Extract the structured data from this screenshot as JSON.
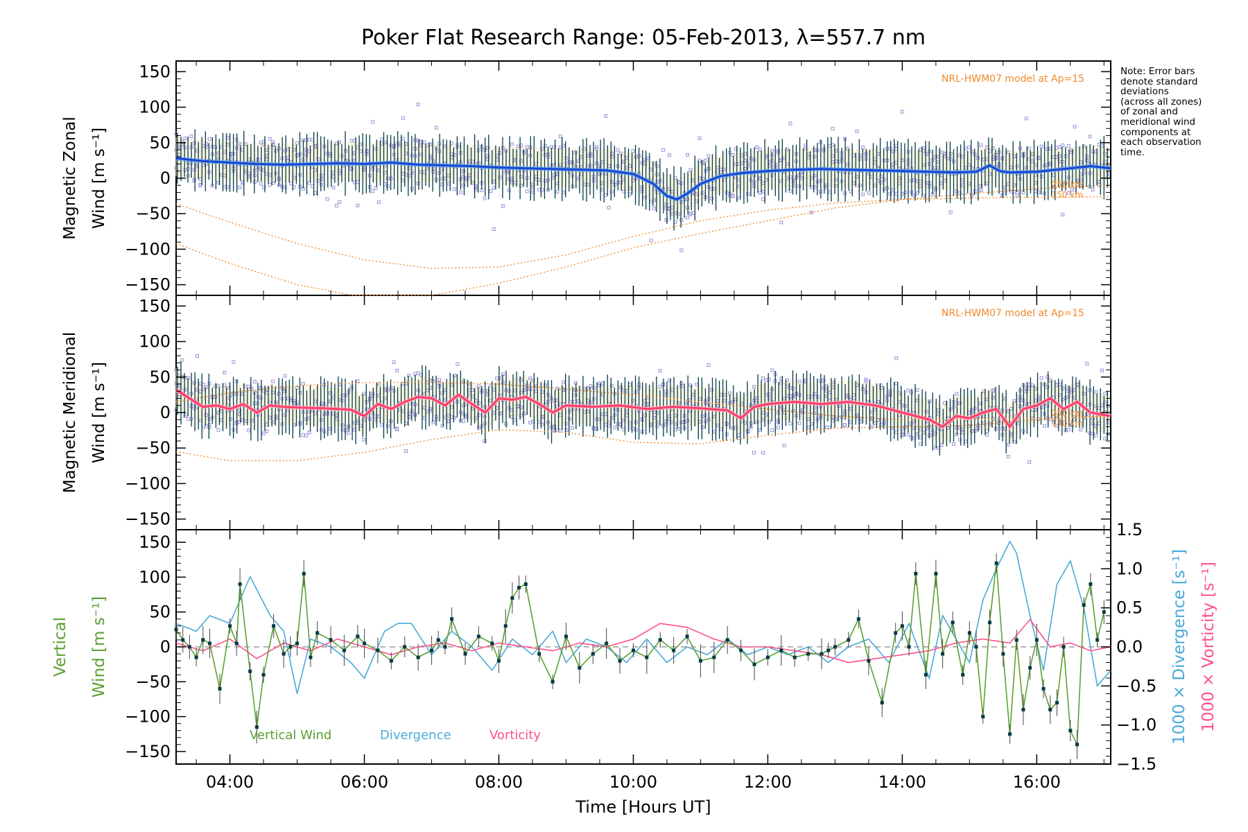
{
  "title": "Poker Flat Research Range: 05-Feb-2013, λ=557.7 nm",
  "note_lines": [
    "Note: Error bars",
    "denote standard",
    "deviations",
    "(across all zones)",
    "of zonal and",
    "meridional wind",
    "components at",
    "each observation",
    "time."
  ],
  "colors": {
    "zonal": "#1a45d6",
    "zonal_light": "#5aa8e8",
    "meridional": "#ff3d6a",
    "vertical": "#5aa030",
    "divergence": "#4aa8d8",
    "vorticity": "#ff4f88",
    "model": "#f08a2a",
    "scatter": "#9a92d8",
    "errorbar": "#003a44"
  },
  "chart_data": [
    {
      "type": "line",
      "panel": "zonal",
      "ylabel_line1": "Magnetic Zonal",
      "ylabel_line2": "Wind [m s⁻¹]",
      "ylim": [
        -165,
        165
      ],
      "yticks": [
        150,
        100,
        50,
        0,
        -50,
        -100,
        -150
      ],
      "xlim": [
        3.2,
        17.1
      ],
      "annotation": "NRL-HWM07 model at Ap=15",
      "model_labels": [
        "250 km",
        "150 km"
      ],
      "series": [
        {
          "name": "zonal mean wind",
          "x": [
            3.2,
            3.6,
            4.0,
            4.4,
            4.8,
            5.2,
            5.6,
            6.0,
            6.4,
            6.8,
            7.2,
            7.6,
            8.0,
            8.4,
            8.8,
            9.2,
            9.6,
            10.0,
            10.3,
            10.5,
            10.65,
            10.8,
            11.0,
            11.3,
            11.6,
            12.0,
            12.4,
            12.8,
            13.2,
            13.6,
            14.0,
            14.4,
            14.8,
            15.1,
            15.3,
            15.45,
            15.6,
            16.0,
            16.4,
            16.8,
            17.1
          ],
          "values": [
            28,
            24,
            22,
            20,
            19,
            20,
            21,
            20,
            22,
            19,
            18,
            17,
            15,
            14,
            13,
            12,
            11,
            6,
            -8,
            -25,
            -30,
            -22,
            -8,
            3,
            7,
            10,
            12,
            13,
            12,
            11,
            10,
            9,
            8,
            9,
            18,
            10,
            8,
            9,
            13,
            17,
            14
          ]
        },
        {
          "name": "HWM07 model 250 km",
          "x": [
            3.2,
            4.0,
            5.0,
            6.0,
            7.0,
            8.0,
            9.0,
            10.0,
            11.0,
            12.0,
            13.0,
            14.0,
            15.0,
            16.0,
            17.1
          ],
          "values": [
            -36,
            -62,
            -92,
            -115,
            -127,
            -125,
            -108,
            -82,
            -60,
            -45,
            -35,
            -30,
            -28,
            -27,
            -26
          ]
        },
        {
          "name": "HWM07 model 150 km",
          "x": [
            3.2,
            4.0,
            5.0,
            6.0,
            7.0,
            8.0,
            9.0,
            10.0,
            11.0,
            12.0,
            13.0,
            14.0,
            15.0,
            16.0,
            17.1
          ],
          "values": [
            -92,
            -120,
            -150,
            -168,
            -165,
            -148,
            -125,
            -98,
            -78,
            -60,
            -42,
            -30,
            -22,
            -15,
            -10
          ]
        }
      ]
    },
    {
      "type": "line",
      "panel": "meridional",
      "ylabel_line1": "Magnetic Meridional",
      "ylabel_line2": "Wind [m s⁻¹]",
      "ylim": [
        -165,
        165
      ],
      "yticks": [
        150,
        100,
        50,
        0,
        -50,
        -100,
        -150
      ],
      "xlim": [
        3.2,
        17.1
      ],
      "annotation": "NRL-HWM07 model at Ap=15",
      "model_labels": [
        "250 km",
        "150 km"
      ],
      "series": [
        {
          "name": "meridional mean wind",
          "x": [
            3.2,
            3.4,
            3.6,
            3.8,
            4.0,
            4.2,
            4.4,
            4.6,
            4.8,
            5.0,
            5.4,
            5.8,
            6.0,
            6.2,
            6.4,
            6.6,
            6.8,
            7.0,
            7.2,
            7.4,
            7.6,
            7.8,
            8.0,
            8.2,
            8.4,
            8.6,
            8.8,
            9.0,
            9.4,
            9.8,
            10.2,
            10.6,
            11.0,
            11.4,
            11.6,
            11.8,
            12.0,
            12.4,
            12.8,
            13.2,
            13.6,
            14.0,
            14.4,
            14.6,
            14.8,
            15.0,
            15.2,
            15.4,
            15.6,
            15.8,
            16.0,
            16.2,
            16.4,
            16.6,
            16.8,
            17.1
          ],
          "values": [
            32,
            20,
            8,
            10,
            5,
            12,
            0,
            10,
            8,
            7,
            6,
            4,
            -5,
            12,
            5,
            15,
            22,
            20,
            10,
            25,
            12,
            0,
            20,
            18,
            22,
            12,
            0,
            10,
            8,
            10,
            5,
            8,
            6,
            3,
            -8,
            8,
            12,
            15,
            12,
            15,
            10,
            0,
            -10,
            -20,
            -5,
            -8,
            0,
            5,
            -20,
            5,
            10,
            20,
            5,
            15,
            0,
            -5
          ]
        },
        {
          "name": "HWM07 model 250 km",
          "x": [
            3.2,
            4.0,
            5.0,
            6.0,
            7.0,
            8.0,
            9.0,
            10.0,
            11.0,
            12.0,
            13.0,
            14.0,
            15.0,
            16.0,
            17.1
          ],
          "values": [
            15,
            28,
            38,
            42,
            43,
            40,
            33,
            25,
            15,
            5,
            -5,
            -10,
            -10,
            -8,
            -5
          ]
        },
        {
          "name": "HWM07 model 150 km",
          "x": [
            3.2,
            4.0,
            5.0,
            6.0,
            7.0,
            8.0,
            9.0,
            10.0,
            11.0,
            12.0,
            13.0,
            14.0,
            15.0,
            16.0,
            17.1
          ],
          "values": [
            -55,
            -68,
            -68,
            -56,
            -38,
            -24,
            -28,
            -42,
            -44,
            -32,
            -22,
            -20,
            -18,
            -10,
            -5
          ]
        }
      ]
    },
    {
      "type": "line",
      "panel": "vertical",
      "ylabel_line1": "Vertical",
      "ylabel_line2": "Wind [m s⁻¹]",
      "ylabel_right1": "1000 × Divergence [s⁻¹]",
      "ylabel_right2": "1000 × Vorticity [s⁻¹]",
      "ylim": [
        -168,
        168
      ],
      "yticks": [
        150,
        100,
        50,
        0,
        -50,
        -100,
        -150
      ],
      "ylim_right": [
        -1.5,
        1.5
      ],
      "yticks_right": [
        "1.5",
        "1.0",
        "0.5",
        "0.0",
        "−0.5",
        "−1.0",
        "−1.5"
      ],
      "xlim": [
        3.2,
        17.1
      ],
      "xticks": [
        "04:00",
        "06:00",
        "08:00",
        "10:00",
        "12:00",
        "14:00",
        "16:00"
      ],
      "xlabel": "Time [Hours UT]",
      "legend": [
        "Vertical Wind",
        "Divergence",
        "Vorticity"
      ],
      "series": [
        {
          "name": "Vertical Wind",
          "x": [
            3.2,
            3.3,
            3.4,
            3.5,
            3.6,
            3.7,
            3.85,
            4.0,
            4.1,
            4.15,
            4.3,
            4.4,
            4.5,
            4.65,
            4.8,
            4.9,
            5.0,
            5.1,
            5.2,
            5.3,
            5.5,
            5.7,
            5.9,
            6.0,
            6.2,
            6.4,
            6.6,
            6.8,
            7.0,
            7.1,
            7.2,
            7.3,
            7.5,
            7.7,
            7.9,
            8.0,
            8.1,
            8.2,
            8.3,
            8.4,
            8.6,
            8.8,
            9.0,
            9.2,
            9.4,
            9.6,
            9.8,
            10.0,
            10.2,
            10.4,
            10.6,
            10.8,
            11.0,
            11.2,
            11.4,
            11.6,
            11.8,
            12.0,
            12.2,
            12.4,
            12.6,
            12.8,
            12.9,
            13.0,
            13.2,
            13.35,
            13.5,
            13.7,
            13.9,
            14.0,
            14.1,
            14.2,
            14.35,
            14.5,
            14.6,
            14.75,
            14.9,
            15.0,
            15.1,
            15.2,
            15.3,
            15.4,
            15.5,
            15.6,
            15.7,
            15.8,
            15.9,
            16.0,
            16.1,
            16.2,
            16.3,
            16.4,
            16.5,
            16.6,
            16.7,
            16.8,
            16.9,
            17.0
          ],
          "values": [
            25,
            10,
            0,
            -15,
            10,
            5,
            -60,
            30,
            5,
            90,
            -35,
            -115,
            -40,
            30,
            -10,
            0,
            5,
            105,
            -15,
            20,
            10,
            -5,
            15,
            5,
            -5,
            -20,
            0,
            -15,
            -5,
            10,
            0,
            40,
            -10,
            15,
            5,
            -20,
            30,
            70,
            85,
            90,
            -10,
            -50,
            15,
            -30,
            -10,
            5,
            -20,
            -5,
            -15,
            10,
            -5,
            15,
            -20,
            -15,
            10,
            -5,
            -25,
            -15,
            -5,
            -15,
            -10,
            -10,
            -5,
            0,
            10,
            40,
            -20,
            -80,
            20,
            30,
            0,
            105,
            -40,
            105,
            -10,
            35,
            -40,
            20,
            0,
            -100,
            35,
            120,
            -10,
            -125,
            10,
            -90,
            -30,
            10,
            -60,
            -90,
            -80,
            0,
            -120,
            -140,
            60,
            90,
            10,
            50
          ]
        },
        {
          "name": "Divergence",
          "x": [
            3.2,
            3.5,
            3.7,
            4.0,
            4.3,
            4.6,
            4.8,
            5.0,
            5.2,
            5.5,
            5.8,
            6.0,
            6.3,
            6.5,
            6.7,
            7.0,
            7.3,
            7.6,
            7.9,
            8.2,
            8.5,
            8.8,
            9.0,
            9.3,
            9.6,
            9.9,
            10.2,
            10.5,
            10.8,
            11.1,
            11.4,
            11.7,
            12.0,
            12.3,
            12.6,
            12.9,
            13.2,
            13.5,
            13.8,
            14.1,
            14.4,
            14.6,
            14.8,
            15.0,
            15.2,
            15.4,
            15.6,
            15.7,
            15.9,
            16.1,
            16.3,
            16.5,
            16.7,
            16.9,
            17.1
          ],
          "values": [
            0.3,
            0.2,
            0.4,
            0.3,
            0.9,
            0.4,
            0.2,
            -0.6,
            0.1,
            0.0,
            -0.2,
            -0.4,
            0.2,
            0.3,
            0.3,
            -0.1,
            0.2,
            0.0,
            -0.3,
            0.1,
            -0.1,
            0.2,
            -0.2,
            0.1,
            0.0,
            -0.2,
            0.1,
            -0.2,
            0.0,
            -0.1,
            0.1,
            -0.1,
            0.0,
            -0.1,
            0.0,
            -0.2,
            0.0,
            0.1,
            -0.2,
            0.3,
            -0.4,
            0.4,
            0.1,
            -0.2,
            0.6,
            1.0,
            1.35,
            1.2,
            0.4,
            -0.3,
            0.8,
            1.1,
            0.5,
            -0.5,
            -0.3
          ]
        },
        {
          "name": "Vorticity",
          "x": [
            3.2,
            3.6,
            4.0,
            4.4,
            4.8,
            5.2,
            5.6,
            6.0,
            6.4,
            6.8,
            7.2,
            7.6,
            8.0,
            8.4,
            8.8,
            9.2,
            9.6,
            10.0,
            10.4,
            10.8,
            11.2,
            11.6,
            12.0,
            12.4,
            12.8,
            13.2,
            13.6,
            14.0,
            14.4,
            14.8,
            15.2,
            15.6,
            15.9,
            16.2,
            16.5,
            16.8,
            17.1
          ],
          "values": [
            0.05,
            -0.05,
            0.1,
            -0.15,
            0.05,
            -0.05,
            0.1,
            0.0,
            -0.1,
            0.0,
            0.05,
            -0.05,
            0.05,
            0.0,
            -0.05,
            0.05,
            0.0,
            0.1,
            0.3,
            0.25,
            0.1,
            0.0,
            0.0,
            -0.05,
            -0.1,
            -0.2,
            -0.15,
            -0.1,
            -0.05,
            0.05,
            0.1,
            0.05,
            0.35,
            0.0,
            0.05,
            -0.05,
            0.0
          ]
        }
      ]
    }
  ]
}
